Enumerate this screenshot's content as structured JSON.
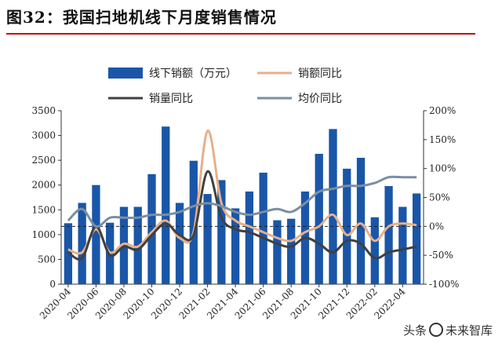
{
  "header": {
    "title": "图32：我国扫地机线下月度销售情况"
  },
  "watermark": {
    "prefix": "头条",
    "suffix": "未来智库",
    "icon": "camera-icon"
  },
  "chart_data": {
    "type": "bar",
    "categories": [
      "2020-04",
      "2020-05",
      "2020-06",
      "2020-07",
      "2020-08",
      "2020-09",
      "2020-10",
      "2020-11",
      "2020-12",
      "2021-01",
      "2021-02",
      "2021-03",
      "2021-04",
      "2021-05",
      "2021-06",
      "2021-07",
      "2021-08",
      "2021-09",
      "2021-10",
      "2021-11",
      "2021-12",
      "2022-01",
      "2022-02",
      "2022-03",
      "2022-04",
      "2022-05"
    ],
    "x_tick_labels": [
      "2020-04",
      "2020-06",
      "2020-08",
      "2020-10",
      "2020-12",
      "2021-02",
      "2021-04",
      "2021-06",
      "2021-08",
      "2021-10",
      "2021-12",
      "2022-02",
      "2022-04"
    ],
    "y_left": {
      "ticks": [
        "0",
        "500",
        "1000",
        "1500",
        "2000",
        "2500",
        "3000",
        "3500"
      ],
      "ylim": [
        0,
        3500
      ]
    },
    "y_right": {
      "ticks": [
        "-100%",
        "-50%",
        "0%",
        "50%",
        "100%",
        "150%",
        "200%"
      ],
      "ylim": [
        -100,
        200
      ]
    },
    "series": [
      {
        "name": "线下销额（万元）",
        "type": "bar",
        "axis": "left",
        "color": "#1a56a8",
        "values": [
          1230,
          1640,
          2000,
          1240,
          1560,
          1560,
          2220,
          3180,
          1640,
          2490,
          1820,
          2100,
          1530,
          1870,
          2250,
          1290,
          1320,
          1870,
          2630,
          3130,
          2330,
          2550,
          1350,
          1980,
          1560,
          1830
        ]
      },
      {
        "name": "销额同比",
        "type": "line",
        "axis": "right",
        "color": "#e6b08a",
        "values": [
          -40,
          -45,
          -5,
          -45,
          -30,
          -35,
          -10,
          10,
          -20,
          -10,
          165,
          40,
          10,
          0,
          -10,
          -20,
          -25,
          -10,
          0,
          20,
          -15,
          5,
          -25,
          0,
          5,
          2
        ]
      },
      {
        "name": "销量同比",
        "type": "line",
        "axis": "right",
        "color": "#404040",
        "values": [
          -45,
          -55,
          0,
          -50,
          -35,
          -40,
          -15,
          5,
          -15,
          -15,
          95,
          15,
          -5,
          -10,
          -20,
          -30,
          -35,
          -20,
          -30,
          -45,
          -25,
          -30,
          -55,
          -45,
          -40,
          -35
        ]
      },
      {
        "name": "均价同比",
        "type": "line",
        "axis": "right",
        "color": "#7a8fa0",
        "values": [
          10,
          30,
          0,
          15,
          15,
          15,
          20,
          20,
          25,
          35,
          40,
          35,
          25,
          20,
          25,
          30,
          25,
          40,
          60,
          65,
          70,
          70,
          75,
          85,
          85,
          85
        ]
      }
    ],
    "reference_line": {
      "axis": "right",
      "value": 0,
      "style": "dashed"
    },
    "legend": {
      "placement": "top"
    }
  }
}
